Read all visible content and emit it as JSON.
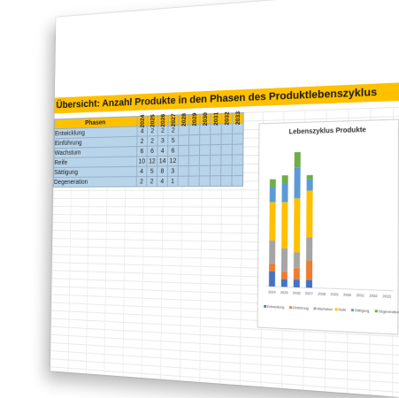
{
  "title": "Übersicht: Anzahl Produkte in den Phasen des Produktlebenszyklus",
  "table": {
    "header": "Phasen",
    "years": [
      "2024",
      "2025",
      "2026",
      "2027",
      "2028",
      "2029",
      "2030",
      "2031",
      "2032",
      "2033"
    ],
    "rows": [
      {
        "label": "Entwicklung",
        "values": [
          "4",
          "2",
          "2",
          "2",
          "",
          "",
          "",
          "",
          "",
          ""
        ]
      },
      {
        "label": "Einführung",
        "values": [
          "2",
          "2",
          "3",
          "5",
          "",
          "",
          "",
          "",
          "",
          ""
        ]
      },
      {
        "label": "Wachstum",
        "values": [
          "6",
          "6",
          "4",
          "6",
          "",
          "",
          "",
          "",
          "",
          ""
        ]
      },
      {
        "label": "Reife",
        "values": [
          "10",
          "12",
          "14",
          "12",
          "",
          "",
          "",
          "",
          "",
          ""
        ]
      },
      {
        "label": "Sättigung",
        "values": [
          "4",
          "5",
          "8",
          "3",
          "",
          "",
          "",
          "",
          "",
          ""
        ]
      },
      {
        "label": "Degeneration",
        "values": [
          "2",
          "2",
          "4",
          "1",
          "",
          "",
          "",
          "",
          "",
          ""
        ]
      }
    ]
  },
  "chart_data": {
    "type": "bar",
    "stacked": true,
    "title": "Lebenszyklus Produkte",
    "categories": [
      "2024",
      "2025",
      "2026",
      "2027",
      "2028",
      "2029",
      "2030",
      "2031",
      "2032",
      "2033"
    ],
    "series": [
      {
        "name": "Entwicklung",
        "color": "#4472c4",
        "values": [
          4,
          2,
          2,
          2,
          0,
          0,
          0,
          0,
          0,
          0
        ]
      },
      {
        "name": "Einführung",
        "color": "#ed7d31",
        "values": [
          2,
          2,
          3,
          5,
          0,
          0,
          0,
          0,
          0,
          0
        ]
      },
      {
        "name": "Wachstum",
        "color": "#a5a5a5",
        "values": [
          6,
          6,
          4,
          6,
          0,
          0,
          0,
          0,
          0,
          0
        ]
      },
      {
        "name": "Reife",
        "color": "#ffc000",
        "values": [
          10,
          12,
          14,
          12,
          0,
          0,
          0,
          0,
          0,
          0
        ]
      },
      {
        "name": "Sättigung",
        "color": "#5b9bd5",
        "values": [
          4,
          5,
          8,
          3,
          0,
          0,
          0,
          0,
          0,
          0
        ]
      },
      {
        "name": "Degeneration",
        "color": "#70ad47",
        "values": [
          2,
          2,
          4,
          1,
          0,
          0,
          0,
          0,
          0,
          0
        ]
      }
    ],
    "ylim": [
      0,
      35
    ],
    "legend": "bottom",
    "grid": false
  }
}
